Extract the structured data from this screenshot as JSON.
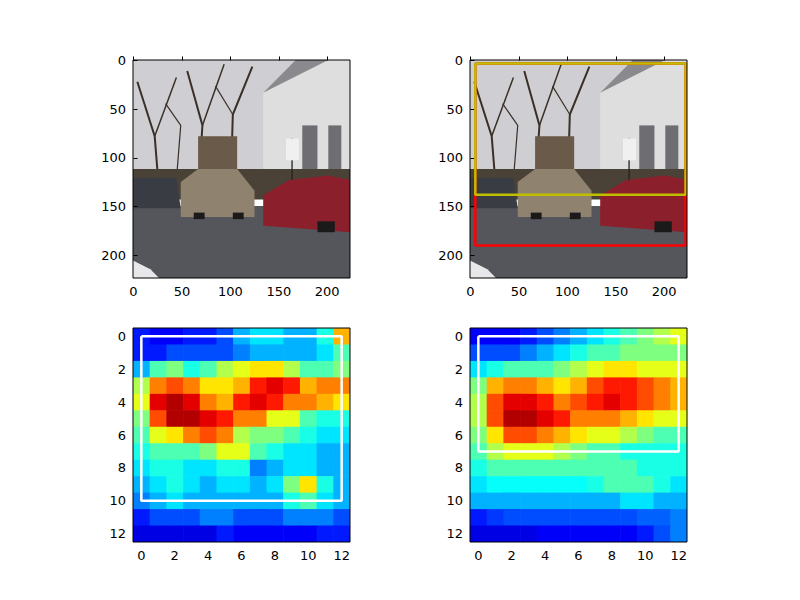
{
  "chart_data": [
    {
      "type": "image",
      "xlim": [
        -0.5,
        223.5
      ],
      "ylim": [
        223.5,
        -0.5
      ],
      "xticks": [
        0,
        50,
        100,
        150,
        200
      ],
      "yticks": [
        0,
        50,
        100,
        150,
        200
      ]
    },
    {
      "type": "image",
      "xlim": [
        -0.5,
        223.5
      ],
      "ylim": [
        223.5,
        -0.5
      ],
      "xticks": [
        0,
        50,
        100,
        150,
        200
      ],
      "yticks": [
        0,
        50,
        100,
        150,
        200
      ],
      "boxes": [
        {
          "color": "#ff0000",
          "x": [
            5,
            222
          ],
          "y": [
            3,
            190
          ]
        },
        {
          "color": "#bfbf00",
          "x": [
            5,
            222
          ],
          "y": [
            3,
            138
          ]
        }
      ]
    },
    {
      "type": "heatmap",
      "xlim": [
        -0.5,
        12.5
      ],
      "ylim": [
        12.5,
        -0.5
      ],
      "xticks": [
        0,
        2,
        4,
        6,
        8,
        10,
        12
      ],
      "yticks": [
        0,
        2,
        4,
        6,
        8,
        10,
        12
      ],
      "color_range": [
        0,
        1
      ],
      "cells": [
        [
          0.15,
          0.12,
          0.12,
          0.15,
          0.15,
          0.2,
          0.3,
          0.35,
          0.35,
          0.3,
          0.3,
          0.4,
          0.7
        ],
        [
          0.15,
          0.15,
          0.2,
          0.2,
          0.2,
          0.2,
          0.25,
          0.3,
          0.3,
          0.3,
          0.3,
          0.35,
          0.45
        ],
        [
          0.3,
          0.45,
          0.5,
          0.4,
          0.45,
          0.55,
          0.6,
          0.65,
          0.65,
          0.55,
          0.45,
          0.45,
          0.5
        ],
        [
          0.55,
          0.75,
          0.8,
          0.75,
          0.65,
          0.65,
          0.7,
          0.85,
          0.9,
          0.85,
          0.7,
          0.75,
          0.75
        ],
        [
          0.6,
          0.9,
          0.95,
          0.9,
          0.75,
          0.7,
          0.85,
          0.9,
          0.85,
          0.75,
          0.75,
          0.7,
          0.65
        ],
        [
          0.5,
          0.8,
          0.95,
          0.95,
          0.9,
          0.85,
          0.75,
          0.75,
          0.6,
          0.6,
          0.45,
          0.4,
          0.4
        ],
        [
          0.45,
          0.6,
          0.65,
          0.75,
          0.8,
          0.75,
          0.55,
          0.5,
          0.5,
          0.45,
          0.4,
          0.35,
          0.35
        ],
        [
          0.4,
          0.45,
          0.45,
          0.45,
          0.5,
          0.6,
          0.6,
          0.45,
          0.4,
          0.35,
          0.35,
          0.3,
          0.3
        ],
        [
          0.35,
          0.4,
          0.4,
          0.35,
          0.35,
          0.4,
          0.4,
          0.25,
          0.3,
          0.35,
          0.35,
          0.3,
          0.3
        ],
        [
          0.3,
          0.35,
          0.4,
          0.35,
          0.3,
          0.35,
          0.35,
          0.3,
          0.35,
          0.5,
          0.65,
          0.4,
          0.3
        ],
        [
          0.25,
          0.3,
          0.35,
          0.3,
          0.3,
          0.3,
          0.3,
          0.3,
          0.3,
          0.4,
          0.45,
          0.35,
          0.3
        ],
        [
          0.15,
          0.2,
          0.2,
          0.2,
          0.25,
          0.25,
          0.2,
          0.2,
          0.2,
          0.25,
          0.25,
          0.25,
          0.2
        ],
        [
          0.1,
          0.1,
          0.1,
          0.1,
          0.1,
          0.15,
          0.12,
          0.12,
          0.12,
          0.12,
          0.12,
          0.15,
          0.15
        ]
      ],
      "boxes": [
        {
          "color": "#ffffff",
          "x": [
            0,
            12
          ],
          "y": [
            0,
            10
          ]
        }
      ]
    },
    {
      "type": "heatmap",
      "xlim": [
        -0.5,
        12.5
      ],
      "ylim": [
        12.5,
        -0.5
      ],
      "xticks": [
        0,
        2,
        4,
        6,
        8,
        10,
        12
      ],
      "yticks": [
        0,
        2,
        4,
        6,
        8,
        10,
        12
      ],
      "color_range": [
        0,
        1
      ],
      "cells": [
        [
          0.12,
          0.12,
          0.12,
          0.15,
          0.2,
          0.25,
          0.3,
          0.35,
          0.4,
          0.45,
          0.5,
          0.55,
          0.6
        ],
        [
          0.2,
          0.2,
          0.2,
          0.25,
          0.3,
          0.35,
          0.4,
          0.45,
          0.45,
          0.5,
          0.5,
          0.5,
          0.5
        ],
        [
          0.35,
          0.4,
          0.45,
          0.45,
          0.45,
          0.5,
          0.55,
          0.6,
          0.65,
          0.65,
          0.6,
          0.6,
          0.6
        ],
        [
          0.5,
          0.7,
          0.75,
          0.75,
          0.7,
          0.65,
          0.7,
          0.8,
          0.85,
          0.85,
          0.8,
          0.75,
          0.7
        ],
        [
          0.55,
          0.8,
          0.9,
          0.9,
          0.85,
          0.75,
          0.8,
          0.85,
          0.9,
          0.85,
          0.8,
          0.75,
          0.7
        ],
        [
          0.55,
          0.8,
          0.95,
          0.95,
          0.9,
          0.85,
          0.75,
          0.75,
          0.75,
          0.7,
          0.65,
          0.6,
          0.6
        ],
        [
          0.5,
          0.65,
          0.8,
          0.8,
          0.75,
          0.7,
          0.65,
          0.6,
          0.6,
          0.55,
          0.5,
          0.45,
          0.45
        ],
        [
          0.45,
          0.55,
          0.6,
          0.6,
          0.6,
          0.55,
          0.5,
          0.45,
          0.45,
          0.4,
          0.4,
          0.4,
          0.4
        ],
        [
          0.4,
          0.45,
          0.45,
          0.45,
          0.45,
          0.45,
          0.45,
          0.45,
          0.45,
          0.45,
          0.4,
          0.4,
          0.4
        ],
        [
          0.35,
          0.38,
          0.38,
          0.38,
          0.38,
          0.38,
          0.38,
          0.4,
          0.45,
          0.45,
          0.45,
          0.4,
          0.35
        ],
        [
          0.3,
          0.3,
          0.3,
          0.3,
          0.3,
          0.3,
          0.3,
          0.3,
          0.3,
          0.35,
          0.35,
          0.3,
          0.3
        ],
        [
          0.15,
          0.18,
          0.2,
          0.2,
          0.2,
          0.2,
          0.2,
          0.2,
          0.2,
          0.2,
          0.22,
          0.22,
          0.25
        ],
        [
          0.1,
          0.1,
          0.1,
          0.1,
          0.12,
          0.12,
          0.12,
          0.12,
          0.12,
          0.12,
          0.15,
          0.2,
          0.25
        ]
      ],
      "boxes": [
        {
          "color": "#ffffff",
          "x": [
            0,
            12
          ],
          "y": [
            0,
            7
          ]
        }
      ]
    }
  ]
}
